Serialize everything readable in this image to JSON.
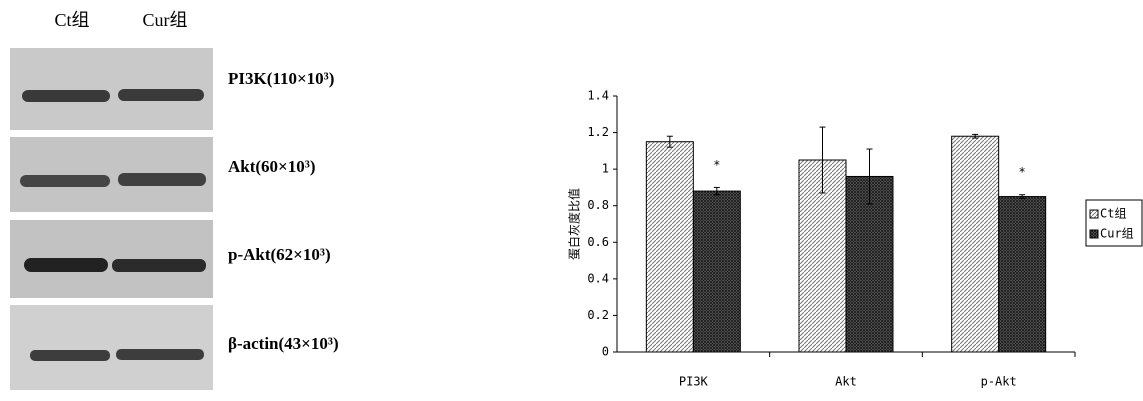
{
  "blot": {
    "lanes": [
      "Ct组",
      "Cur组"
    ],
    "bands": [
      "PI3K(110×10³)",
      "Akt(60×10³)",
      "p-Akt(62×10³)",
      "β-actin(43×10³)"
    ]
  },
  "chart_data": {
    "type": "bar",
    "y_label": "蛋白灰度比值",
    "categories": [
      "PI3K",
      "Akt",
      "p-Akt"
    ],
    "series": [
      {
        "name": "Ct组",
        "color": "#777777",
        "values": [
          1.15,
          1.05,
          1.18
        ],
        "errors": [
          0.03,
          0.18,
          0.01
        ]
      },
      {
        "name": "Cur组",
        "color": "#222222",
        "values": [
          0.88,
          0.96,
          0.85
        ],
        "errors": [
          0.02,
          0.15,
          0.01
        ]
      }
    ],
    "annotations": [
      {
        "text": "*",
        "x": "PI3K"
      },
      {
        "text": "*",
        "x": "p-Akt"
      }
    ],
    "ylim": [
      0,
      1.4
    ],
    "yticks": [
      0,
      0.2,
      0.4,
      0.6,
      0.8,
      1,
      1.2,
      1.4
    ],
    "grid": false,
    "legend": "right"
  }
}
